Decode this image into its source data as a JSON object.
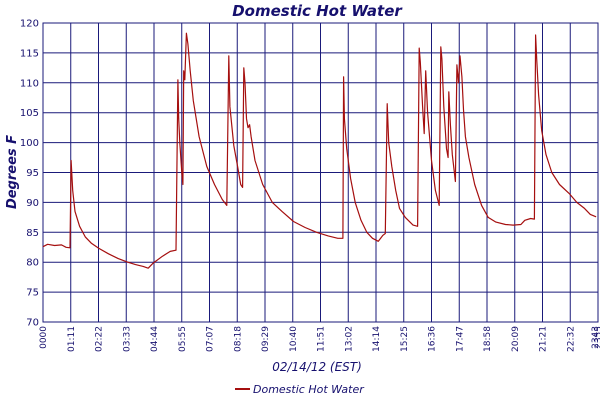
{
  "chart_data": {
    "type": "line",
    "title": "Domestic Hot Water",
    "xlabel": "02/14/12 (EST)",
    "ylabel": "Degrees F",
    "ylim": [
      70,
      120
    ],
    "yticks": [
      70,
      75,
      80,
      85,
      90,
      95,
      100,
      105,
      110,
      115,
      120
    ],
    "xlim": [
      "00:00",
      "24:00"
    ],
    "xticks": [
      "0000",
      "01:11",
      "02:22",
      "03:33",
      "04:44",
      "05:55",
      "07:07",
      "08:18",
      "09:29",
      "10:40",
      "11:51",
      "13:02",
      "14:14",
      "15:25",
      "16:36",
      "17:47",
      "18:58",
      "20:09",
      "21:21",
      "22:32",
      "2343",
      "2355"
    ],
    "grid": true,
    "legend_position": "bottom-center",
    "colors": {
      "series": "#a50f0f",
      "grid": "#1a1a7a",
      "text": "#16106e"
    },
    "series": [
      {
        "name": "Domestic Hot Water",
        "points": [
          [
            "00:00",
            82.6
          ],
          [
            "00:12",
            83.0
          ],
          [
            "00:30",
            82.8
          ],
          [
            "00:48",
            82.9
          ],
          [
            "01:00",
            82.5
          ],
          [
            "01:10",
            82.4
          ],
          [
            "01:13",
            97.0
          ],
          [
            "01:17",
            92.0
          ],
          [
            "01:23",
            88.5
          ],
          [
            "01:35",
            86.0
          ],
          [
            "01:50",
            84.2
          ],
          [
            "02:05",
            83.2
          ],
          [
            "02:25",
            82.3
          ],
          [
            "02:50",
            81.4
          ],
          [
            "03:15",
            80.6
          ],
          [
            "03:40",
            80.0
          ],
          [
            "04:00",
            79.6
          ],
          [
            "04:20",
            79.3
          ],
          [
            "04:33",
            79.0
          ],
          [
            "04:45",
            79.8
          ],
          [
            "05:10",
            81.0
          ],
          [
            "05:30",
            81.8
          ],
          [
            "05:45",
            82.0
          ],
          [
            "05:50",
            110.5
          ],
          [
            "05:52",
            104.0
          ],
          [
            "05:55",
            100.0
          ],
          [
            "06:00",
            95.0
          ],
          [
            "06:03",
            93.0
          ],
          [
            "06:05",
            112.0
          ],
          [
            "06:08",
            110.5
          ],
          [
            "06:12",
            118.3
          ],
          [
            "06:16",
            116.5
          ],
          [
            "06:22",
            112.0
          ],
          [
            "06:30",
            107.0
          ],
          [
            "06:45",
            101.0
          ],
          [
            "07:05",
            96.0
          ],
          [
            "07:25",
            93.0
          ],
          [
            "07:45",
            90.5
          ],
          [
            "07:57",
            89.5
          ],
          [
            "08:02",
            114.5
          ],
          [
            "08:05",
            106.0
          ],
          [
            "08:15",
            99.5
          ],
          [
            "08:25",
            96.0
          ],
          [
            "08:33",
            93.0
          ],
          [
            "08:38",
            92.5
          ],
          [
            "08:41",
            112.5
          ],
          [
            "08:44",
            110.0
          ],
          [
            "08:48",
            104.0
          ],
          [
            "08:52",
            102.5
          ],
          [
            "08:56",
            103.0
          ],
          [
            "09:00",
            101.0
          ],
          [
            "09:10",
            97.0
          ],
          [
            "09:30",
            93.0
          ],
          [
            "09:55",
            90.0
          ],
          [
            "10:20",
            88.5
          ],
          [
            "10:50",
            86.8
          ],
          [
            "11:20",
            85.8
          ],
          [
            "11:50",
            85.0
          ],
          [
            "12:20",
            84.4
          ],
          [
            "12:45",
            84.0
          ],
          [
            "12:58",
            84.0
          ],
          [
            "13:00",
            111.0
          ],
          [
            "13:02",
            104.0
          ],
          [
            "13:08",
            99.0
          ],
          [
            "13:18",
            94.0
          ],
          [
            "13:30",
            90.0
          ],
          [
            "13:45",
            87.0
          ],
          [
            "14:00",
            85.0
          ],
          [
            "14:15",
            84.0
          ],
          [
            "14:30",
            83.5
          ],
          [
            "14:42",
            84.5
          ],
          [
            "14:48",
            84.8
          ],
          [
            "14:53",
            106.5
          ],
          [
            "14:57",
            100.0
          ],
          [
            "15:05",
            96.0
          ],
          [
            "15:15",
            92.0
          ],
          [
            "15:25",
            89.0
          ],
          [
            "15:40",
            87.5
          ],
          [
            "16:00",
            86.2
          ],
          [
            "16:12",
            86.0
          ],
          [
            "16:16",
            115.8
          ],
          [
            "16:19",
            113.5
          ],
          [
            "16:25",
            106.0
          ],
          [
            "16:29",
            101.5
          ],
          [
            "16:33",
            112.0
          ],
          [
            "16:38",
            105.0
          ],
          [
            "16:48",
            97.0
          ],
          [
            "16:58",
            92.0
          ],
          [
            "17:08",
            89.5
          ],
          [
            "17:12",
            116.0
          ],
          [
            "17:15",
            114.0
          ],
          [
            "17:20",
            106.0
          ],
          [
            "17:27",
            99.0
          ],
          [
            "17:31",
            97.5
          ],
          [
            "17:33",
            108.5
          ],
          [
            "17:37",
            103.0
          ],
          [
            "17:42",
            98.0
          ],
          [
            "17:50",
            93.5
          ],
          [
            "17:54",
            113.0
          ],
          [
            "17:58",
            110.0
          ],
          [
            "18:02",
            114.5
          ],
          [
            "18:07",
            111.0
          ],
          [
            "18:11",
            105.5
          ],
          [
            "18:16",
            101.0
          ],
          [
            "18:25",
            97.5
          ],
          [
            "18:40",
            93.0
          ],
          [
            "18:58",
            89.5
          ],
          [
            "19:15",
            87.5
          ],
          [
            "19:35",
            86.7
          ],
          [
            "20:00",
            86.3
          ],
          [
            "20:20",
            86.2
          ],
          [
            "20:40",
            86.3
          ],
          [
            "20:50",
            87.0
          ],
          [
            "21:05",
            87.3
          ],
          [
            "21:15",
            87.2
          ],
          [
            "21:18",
            118.0
          ],
          [
            "21:21",
            114.0
          ],
          [
            "21:26",
            108.0
          ],
          [
            "21:34",
            102.0
          ],
          [
            "21:45",
            98.0
          ],
          [
            "22:00",
            95.0
          ],
          [
            "22:20",
            93.0
          ],
          [
            "22:45",
            91.5
          ],
          [
            "23:05",
            90.0
          ],
          [
            "23:25",
            89.0
          ],
          [
            "23:40",
            88.0
          ],
          [
            "23:55",
            87.6
          ]
        ]
      }
    ]
  }
}
